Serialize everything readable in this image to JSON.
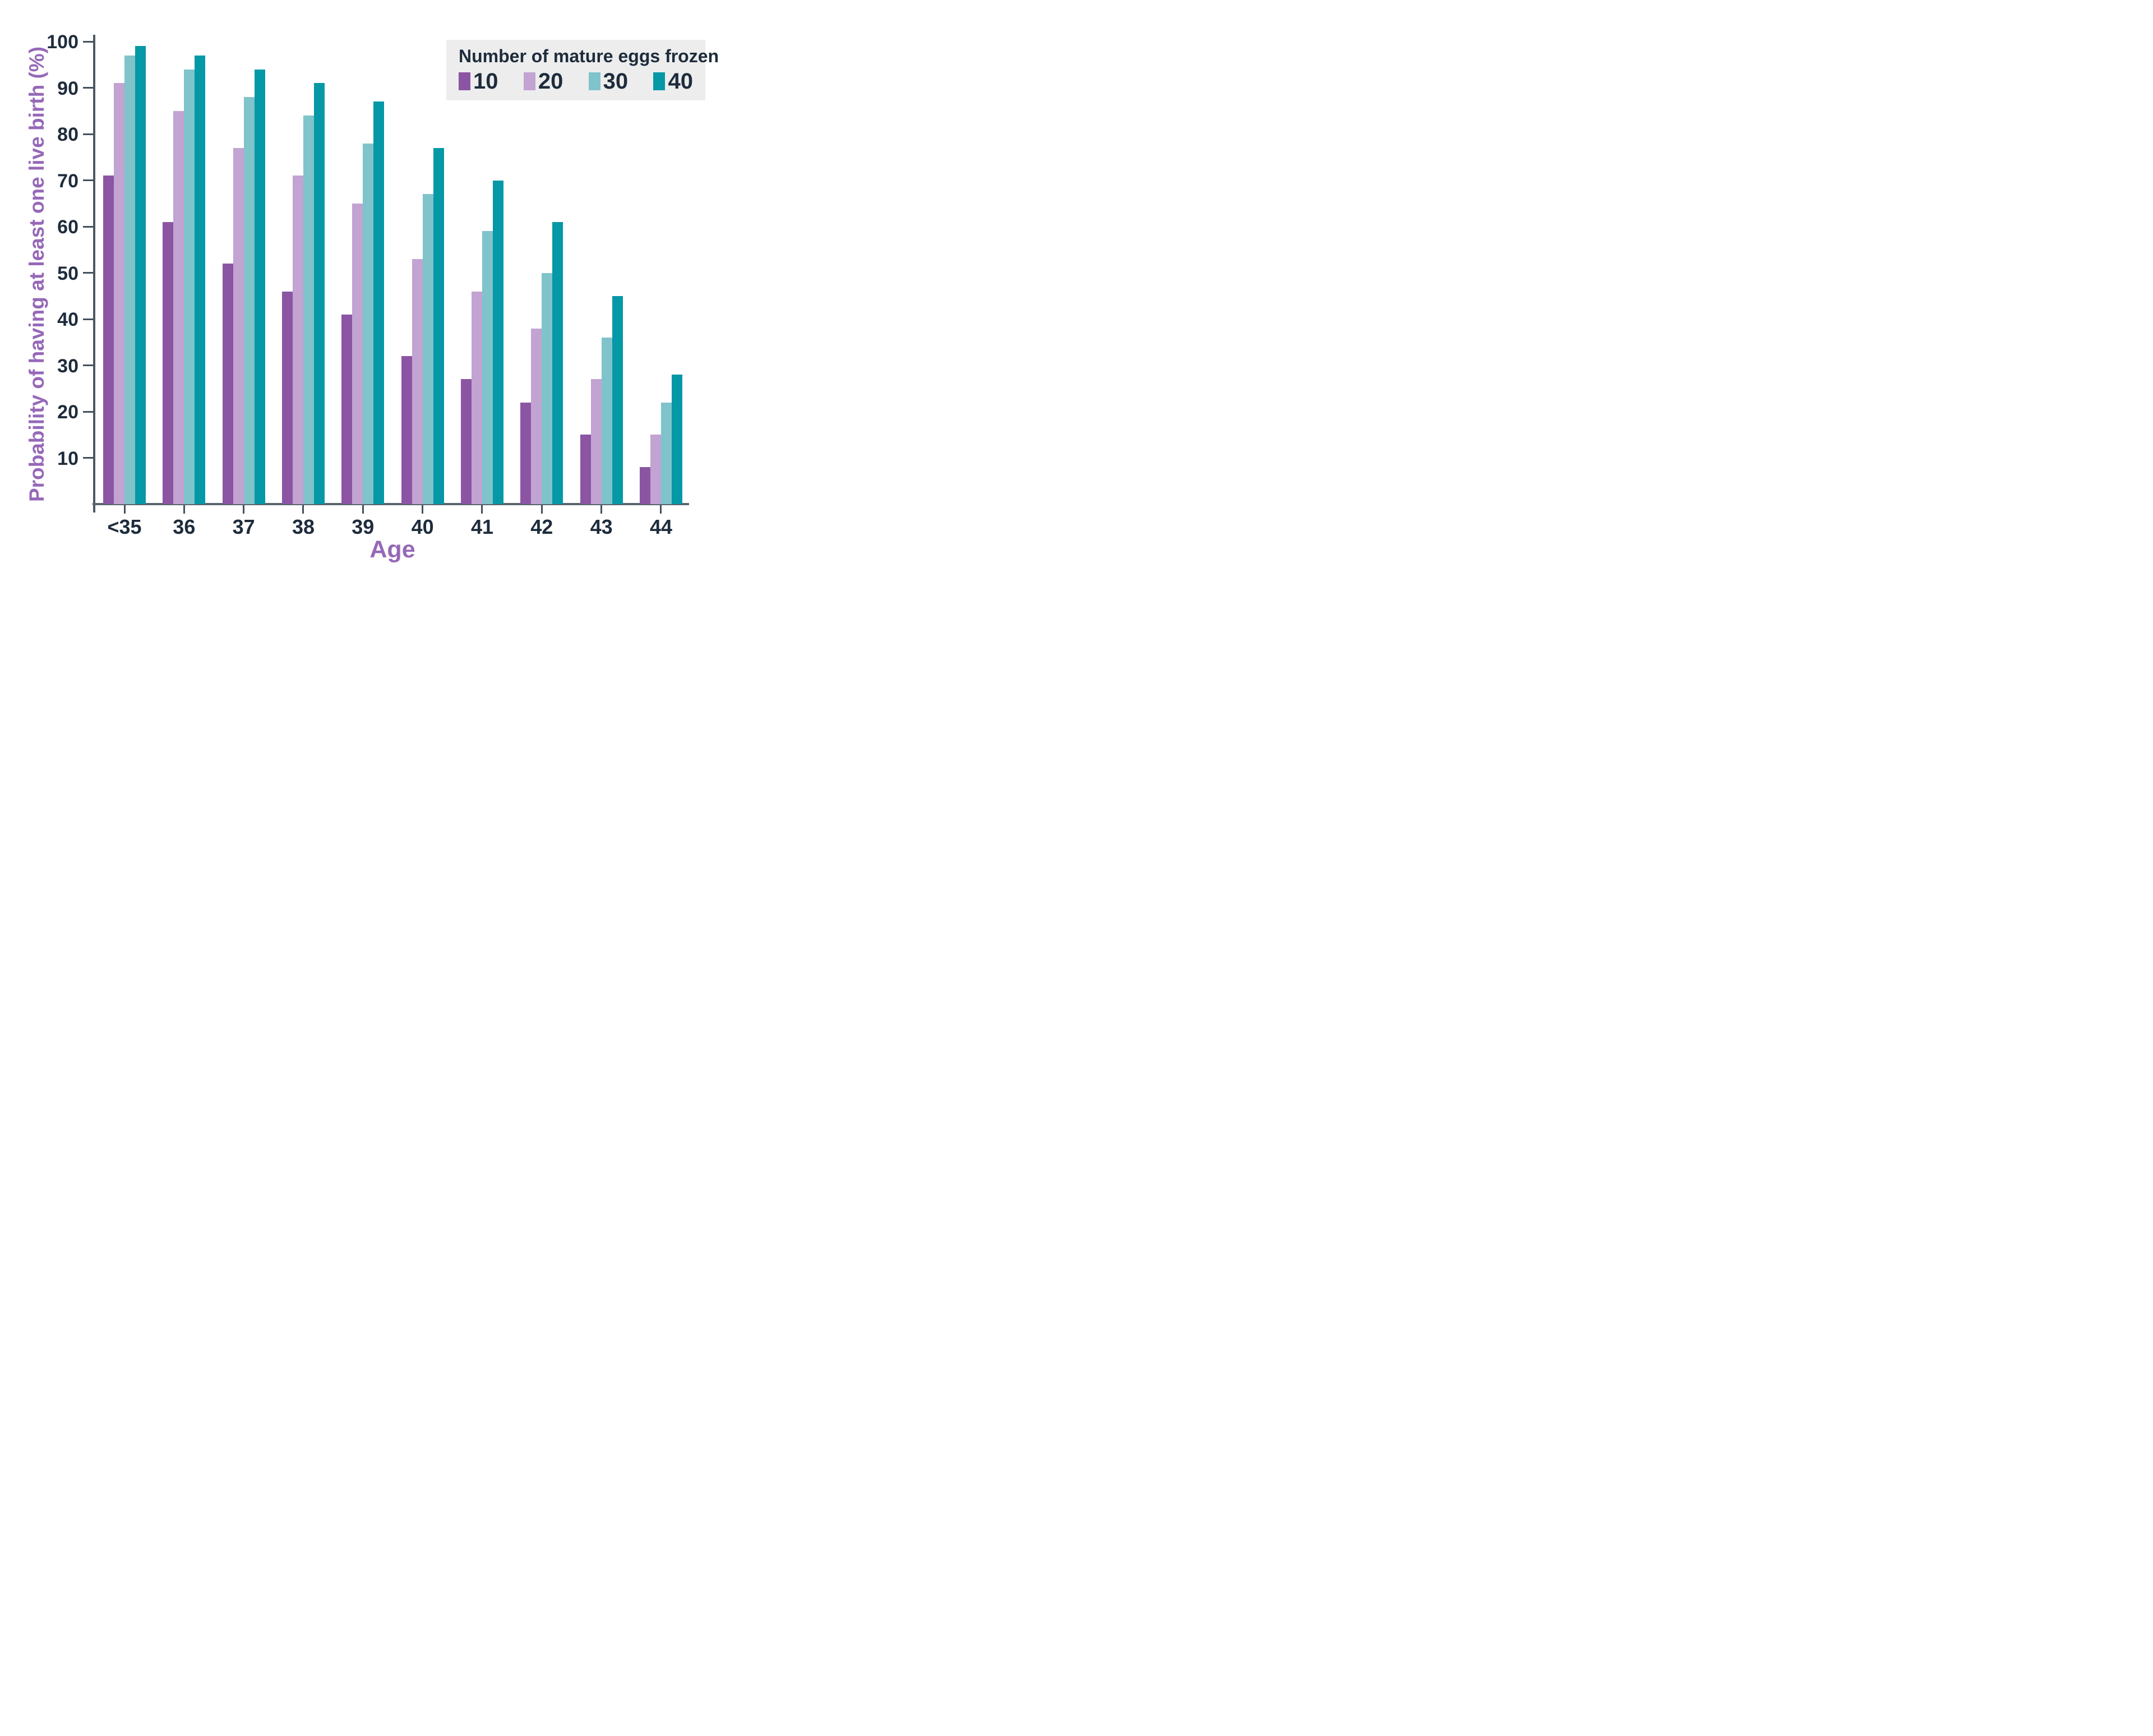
{
  "figure": {
    "background": "#ffffff",
    "axis_color": "#4d5963",
    "tick_text_color": "#1e2c3c",
    "title_text_color": "#9668b8"
  },
  "y_axis": {
    "title": "Probability of having at least one live birth (%)",
    "tick_labels": [
      "100",
      "90",
      "80",
      "70",
      "60",
      "50",
      "40",
      "30",
      "20",
      "10"
    ]
  },
  "x_axis": {
    "title": "Age",
    "tick_labels": [
      "<35",
      "36",
      "37",
      "38",
      "39",
      "40",
      "41",
      "42",
      "43",
      "44"
    ]
  },
  "legend": {
    "title": "Number of mature eggs frozen",
    "background": "#ededed",
    "items": [
      {
        "label": "10",
        "color": "#8b55a3"
      },
      {
        "label": "20",
        "color": "#c2a3d2"
      },
      {
        "label": "30",
        "color": "#7fc3cb"
      },
      {
        "label": "40",
        "color": "#0598a6"
      }
    ]
  },
  "chart_data": {
    "type": "bar",
    "title": "",
    "categories": [
      "<35",
      "36",
      "37",
      "38",
      "39",
      "40",
      "41",
      "42",
      "43",
      "44"
    ],
    "series": [
      {
        "name": "10",
        "color": "#8b55a3",
        "values": [
          71,
          61,
          52,
          46,
          41,
          32,
          27,
          22,
          15,
          8
        ]
      },
      {
        "name": "20",
        "color": "#c2a3d2",
        "values": [
          91,
          85,
          77,
          71,
          65,
          53,
          46,
          38,
          27,
          15
        ]
      },
      {
        "name": "30",
        "color": "#7fc3cb",
        "values": [
          97,
          94,
          88,
          84,
          78,
          67,
          59,
          50,
          36,
          22
        ]
      },
      {
        "name": "40",
        "color": "#0598a6",
        "values": [
          99,
          97,
          94,
          91,
          87,
          77,
          70,
          61,
          45,
          28
        ]
      }
    ],
    "xlabel": "Age",
    "ylabel": "Probability of having at least one live birth (%)",
    "ylim": [
      0,
      100
    ],
    "ytick_step": 10,
    "grid": false,
    "legend_title": "Number of mature eggs frozen",
    "legend_position": "top-right"
  }
}
